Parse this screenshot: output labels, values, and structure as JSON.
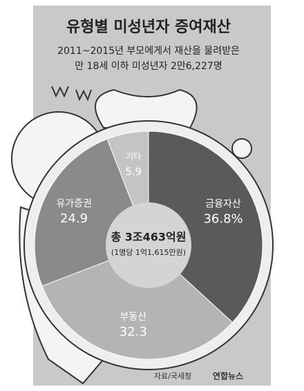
{
  "chart_data": {
    "type": "pie",
    "title": "유형별 미성년자 증여재산",
    "subtitle": [
      "2011~2015년 부모에게서 재산을 물려받은",
      "만 18세 이하 미성년자 2만6,227명"
    ],
    "categories": [
      "금융자산",
      "부동산",
      "유가증권",
      "기타"
    ],
    "values": [
      36.8,
      32.3,
      24.9,
      5.9
    ],
    "value_labels": [
      "36.8%",
      "32.3",
      "24.9",
      "5.9"
    ],
    "colors": [
      "#5a5a5a",
      "#b4b4b4",
      "#8a8a8a",
      "#c4c4c4"
    ],
    "center_text": [
      "총 3조463억원",
      "(1명당 1억1,615만원)"
    ],
    "source": "자료/국세청",
    "logo": "연합뉴스"
  }
}
